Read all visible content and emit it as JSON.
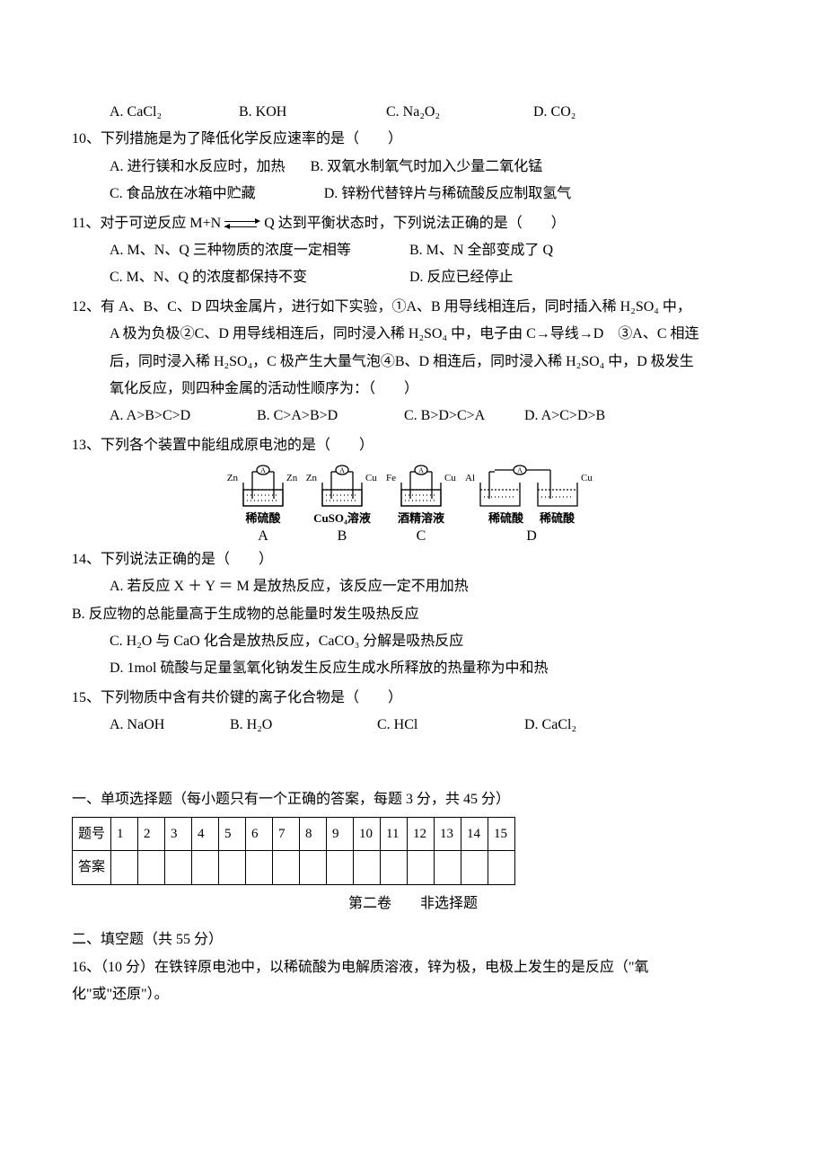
{
  "q9": {
    "optA": "A. CaCl₂",
    "optB": "B. KOH",
    "optC": "C. Na₂O₂",
    "optD": "D. CO₂"
  },
  "q10": {
    "stem": "10、下列措施是为了降低化学反应速率的是（　　）",
    "optA": "A. 进行镁和水反应时，加热",
    "optB": "B. 双氧水制氧气时加入少量二氧化锰",
    "optC": "C. 食品放在冰箱中贮藏",
    "optD": "D. 锌粉代替锌片与稀硫酸反应制取氢气"
  },
  "q11": {
    "stem_pre": "11、对于可逆反应 M+N ",
    "stem_post": " Q 达到平衡状态时，下列说法正确的是（　　）",
    "optA": "A. M、N、Q 三种物质的浓度一定相等",
    "optB": "B. M、N 全部变成了 Q",
    "optC": "C. M、N、Q 的浓度都保持不变",
    "optD": "D. 反应已经停止"
  },
  "q12": {
    "l1": "12、有 A、B、C、D 四块金属片，进行如下实验，①A、B 用导线相连后，同时插入稀 H₂SO₄ 中，",
    "l2": "A 极为负极②C、D 用导线相连后，同时浸入稀 H₂SO₄ 中，电子由 C→导线→D　③A、C 相连",
    "l3": "后，同时浸入稀 H₂SO₄，C 极产生大量气泡④B、D 相连后，同时浸入稀 H₂SO₄ 中，D 极发生",
    "l4": "氧化反应，则四种金属的活动性顺序为：（　　）",
    "optA": "A. A>B>C>D",
    "optB": "B. C>A>B>D",
    "optC": "C. B>D>C>A",
    "optD": "D. A>C>D>B"
  },
  "q13": {
    "stem": "13、下列各个装置中能组成原电池的是（　　）",
    "cells": [
      {
        "left": "Zn",
        "right": "Zn",
        "label": "稀硫酸",
        "letter": "A"
      },
      {
        "left": "Zn",
        "right": "Cu",
        "label": "CuSO₄溶液",
        "letter": "B"
      },
      {
        "left": "Fe",
        "right": "Cu",
        "label": "酒精溶液",
        "letter": "C"
      },
      {
        "left": "Al",
        "right": "",
        "label": "稀硫酸",
        "letter": "D",
        "split": true,
        "farRight": "Cu",
        "label2": "稀硫酸"
      }
    ]
  },
  "q14": {
    "stem": "14、下列说法正确的是（　　）",
    "optA": "A. 若反应 X ＋ Y ＝ M 是放热反应，该反应一定不用加热",
    "optB": "B. 反应物的总能量高于生成物的总能量时发生吸热反应",
    "optC": "C. H₂O 与 CaO 化合是放热反应，CaCO₃ 分解是吸热反应",
    "optD": "D. 1mol 硫酸与足量氢氧化钠发生反应生成水所释放的热量称为中和热"
  },
  "q15": {
    "stem": "15、下列物质中含有共价键的离子化合物是（　　）",
    "optA": "A. NaOH",
    "optB": "B. H₂O",
    "optC": "C. HCl",
    "optD": "D. CaCl₂"
  },
  "sec1_title": "一、单项选择题（每小题只有一个正确的答案，每题 3 分，共 45 分）",
  "table": {
    "rowhead1": "题号",
    "rowhead2": "答案",
    "cols": [
      "1",
      "2",
      "3",
      "4",
      "5",
      "6",
      "7",
      "8",
      "9",
      "10",
      "11",
      "12",
      "13",
      "14",
      "15"
    ]
  },
  "part2_title": "第二卷　　非选择题",
  "sec2_title": "二、填空题（共 55 分）",
  "q16_l1": "16、（10 分）在铁锌原电池中，以稀硫酸为电解质溶液，锌为极，电极上发生的是反应（\"氧",
  "q16_l2": "化\"或\"还原\"）。"
}
